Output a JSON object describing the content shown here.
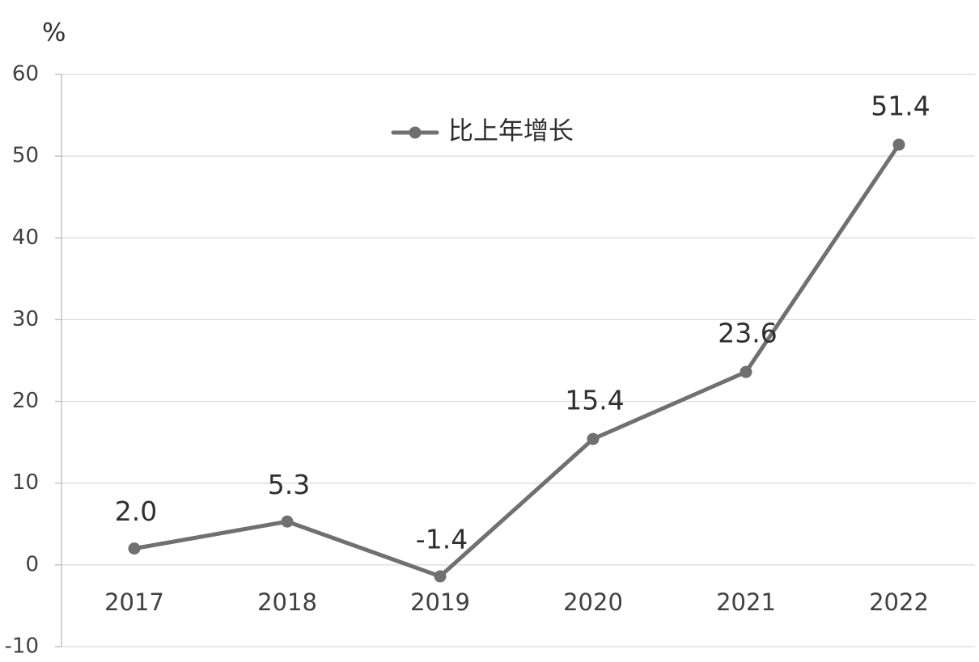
{
  "chart_data": {
    "type": "line",
    "unit_label": "%",
    "categories": [
      "2017",
      "2018",
      "2019",
      "2020",
      "2021",
      "2022"
    ],
    "series": [
      {
        "name": "比上年增长",
        "values": [
          2.0,
          5.3,
          -1.4,
          15.4,
          23.6,
          51.4
        ],
        "data_labels": [
          "2.0",
          "5.3",
          "-1.4",
          "15.4",
          "23.6",
          "51.4"
        ],
        "color": "#707070"
      }
    ],
    "ylim": [
      -10,
      60
    ],
    "y_ticks": [
      "-10",
      "0",
      "10",
      "20",
      "30",
      "40",
      "50",
      "60"
    ],
    "grid": true,
    "legend_position": "top-center"
  }
}
